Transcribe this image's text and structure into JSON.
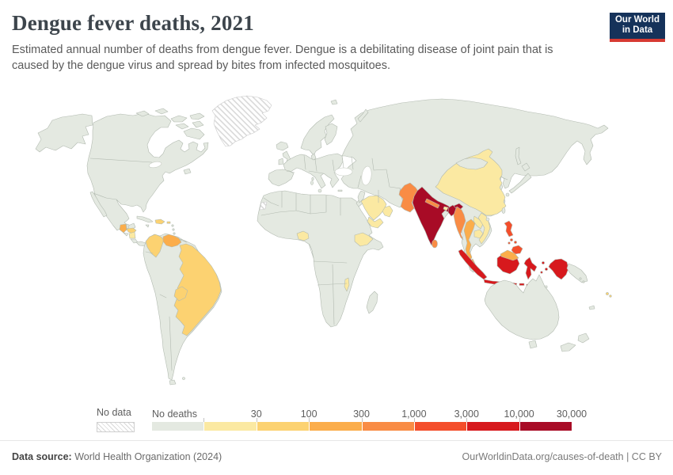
{
  "header": {
    "title": "Dengue fever deaths, 2021",
    "subtitle": "Estimated annual number of deaths from dengue fever. Dengue is a debilitating disease of joint pain that is caused by the dengue virus and spread by bites from infected mosquitoes.",
    "logo": {
      "line1": "Our World",
      "line2": "in Data",
      "bg_color": "#15325a",
      "accent_color": "#d73a32"
    }
  },
  "legend": {
    "no_data_label": "No data",
    "bins": [
      {
        "label": "No deaths",
        "color": "#e4e9e1"
      },
      {
        "label": "30",
        "color": "#fbe9a2"
      },
      {
        "label": "100",
        "color": "#fcd271"
      },
      {
        "label": "300",
        "color": "#fbad4b"
      },
      {
        "label": "1,000",
        "color": "#f98c45"
      },
      {
        "label": "3,000",
        "color": "#f44e2b"
      },
      {
        "label": "10,000",
        "color": "#d7191d"
      },
      {
        "label": "30,000",
        "color": "#a80b26"
      }
    ]
  },
  "footer": {
    "source_label": "Data source:",
    "source_value": "World Health Organization (2024)",
    "link": "OurWorldinData.org/causes-of-death",
    "separator": "|",
    "license": "CC BY"
  },
  "map": {
    "land_color": "#e4e9e1",
    "border_color": "#b2bab0",
    "water_color": "#ffffff",
    "no_data_line_color": "#d9d9d9",
    "assignments": {
      "greenland": "no_data",
      "western-sahara": "no_data",
      "nicaragua": 1,
      "china": 1,
      "saudi-arabia": 1,
      "yemen": 1,
      "oman": 1,
      "nigeria": 1,
      "ethiopia": 1,
      "malawi": 1,
      "laos": 1,
      "vietnam": 1,
      "cambodia": 1,
      "bhutan": 1,
      "honduras": 2,
      "hispaniola": 2,
      "puerto-rico": 2,
      "colombia": 2,
      "brazil": 2,
      "bolivia": 2,
      "fiji": 2,
      "guatemala": 3,
      "venezuela": 3,
      "thailand": 3,
      "malaysia-peninsula": 3,
      "malaysia-borneo": 3,
      "pakistan": 4,
      "nepal": 4,
      "myanmar": 4,
      "sri-lanka": 4,
      "philippines": 5,
      "indonesia": 6,
      "india": 7,
      "india-ne": 7,
      "bangladesh": 7
    }
  },
  "chart_data": {
    "type": "heatmap",
    "subtype": "world-choropleth-map",
    "title": "Dengue fever deaths, 2021",
    "unit": "deaths per year",
    "legend_position": "bottom",
    "scale_bins": [
      "No deaths",
      "0-30",
      "30-100",
      "100-300",
      "300-1,000",
      "1,000-3,000",
      "3,000-10,000",
      "10,000-30,000"
    ],
    "bin_colors": [
      "#e4e9e1",
      "#fbe9a2",
      "#fcd271",
      "#fbad4b",
      "#f98c45",
      "#f44e2b",
      "#d7191d",
      "#a80b26"
    ],
    "no_data_regions": [
      "Greenland",
      "Western Sahara"
    ],
    "values": [
      {
        "country": "India",
        "range": "10,000-30,000"
      },
      {
        "country": "Bangladesh",
        "range": "10,000-30,000"
      },
      {
        "country": "Indonesia",
        "range": "3,000-10,000"
      },
      {
        "country": "Philippines",
        "range": "1,000-3,000"
      },
      {
        "country": "Pakistan",
        "range": "300-1,000"
      },
      {
        "country": "Nepal",
        "range": "300-1,000"
      },
      {
        "country": "Myanmar",
        "range": "300-1,000"
      },
      {
        "country": "Sri Lanka",
        "range": "300-1,000"
      },
      {
        "country": "Thailand",
        "range": "100-300"
      },
      {
        "country": "Malaysia",
        "range": "100-300"
      },
      {
        "country": "Venezuela",
        "range": "100-300"
      },
      {
        "country": "Guatemala",
        "range": "100-300"
      },
      {
        "country": "Colombia",
        "range": "30-100"
      },
      {
        "country": "Brazil",
        "range": "30-100"
      },
      {
        "country": "Bolivia",
        "range": "30-100"
      },
      {
        "country": "Honduras",
        "range": "30-100"
      },
      {
        "country": "Dominican Republic",
        "range": "30-100"
      },
      {
        "country": "Haiti",
        "range": "30-100"
      },
      {
        "country": "Puerto Rico",
        "range": "30-100"
      },
      {
        "country": "Fiji",
        "range": "30-100"
      },
      {
        "country": "China",
        "range": "0-30"
      },
      {
        "country": "Vietnam",
        "range": "0-30"
      },
      {
        "country": "Laos",
        "range": "0-30"
      },
      {
        "country": "Cambodia",
        "range": "0-30"
      },
      {
        "country": "Bhutan",
        "range": "0-30"
      },
      {
        "country": "Saudi Arabia",
        "range": "0-30"
      },
      {
        "country": "Yemen",
        "range": "0-30"
      },
      {
        "country": "Oman",
        "range": "0-30"
      },
      {
        "country": "Nigeria",
        "range": "0-30"
      },
      {
        "country": "Ethiopia",
        "range": "0-30"
      },
      {
        "country": "Malawi",
        "range": "0-30"
      },
      {
        "country": "Nicaragua",
        "range": "0-30"
      }
    ],
    "default_value": "All other countries shown: No deaths"
  }
}
